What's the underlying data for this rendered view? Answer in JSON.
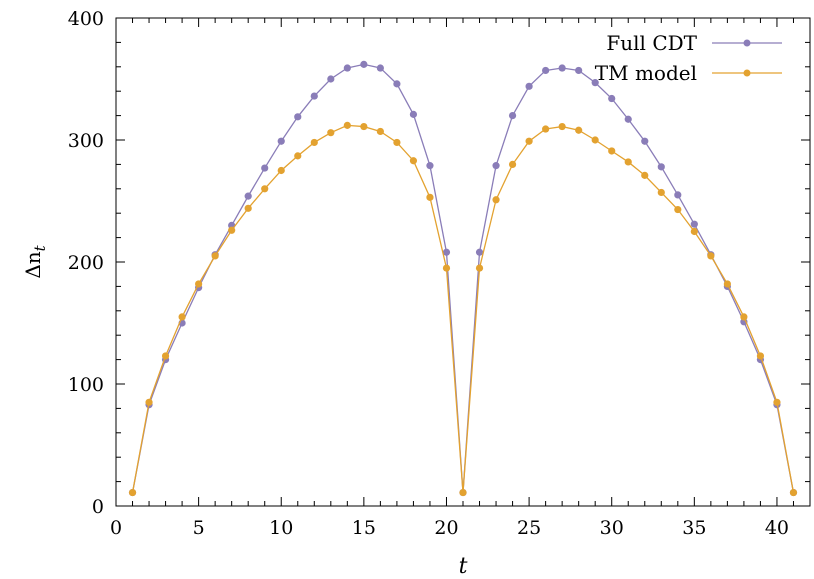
{
  "chart_data": {
    "type": "line",
    "title": "",
    "xlabel": "t",
    "ylabel_main": "Δn",
    "ylabel_sub": "t",
    "xlim": [
      0,
      42
    ],
    "ylim": [
      0,
      400
    ],
    "xticks": [
      "0",
      "5",
      "10",
      "15",
      "20",
      "25",
      "30",
      "35",
      "40"
    ],
    "yticks": [
      "0",
      "100",
      "200",
      "300",
      "400"
    ],
    "grid": false,
    "legend_position": "top-right",
    "x": [
      1,
      2,
      3,
      4,
      5,
      6,
      7,
      8,
      9,
      10,
      11,
      12,
      13,
      14,
      15,
      16,
      17,
      18,
      19,
      20,
      21,
      22,
      23,
      24,
      25,
      26,
      27,
      28,
      29,
      30,
      31,
      32,
      33,
      34,
      35,
      36,
      37,
      38,
      39,
      40,
      41
    ],
    "series": [
      {
        "name": "Full CDT",
        "color": "#8a7db8",
        "values": [
          11,
          83,
          120,
          150,
          179,
          206,
          230,
          254,
          277,
          299,
          319,
          336,
          350,
          359,
          362,
          359,
          346,
          321,
          279,
          208,
          11,
          208,
          279,
          320,
          344,
          357,
          359,
          357,
          347,
          334,
          317,
          299,
          278,
          255,
          231,
          206,
          180,
          151,
          120,
          83,
          11
        ]
      },
      {
        "name": "TM model",
        "color": "#e3a230",
        "values": [
          11,
          85,
          123,
          155,
          182,
          205,
          226,
          244,
          260,
          275,
          287,
          298,
          306,
          312,
          311,
          307,
          298,
          283,
          253,
          195,
          11,
          195,
          251,
          280,
          299,
          309,
          311,
          308,
          300,
          291,
          282,
          271,
          257,
          243,
          225,
          205,
          182,
          155,
          123,
          85,
          11
        ]
      }
    ]
  }
}
